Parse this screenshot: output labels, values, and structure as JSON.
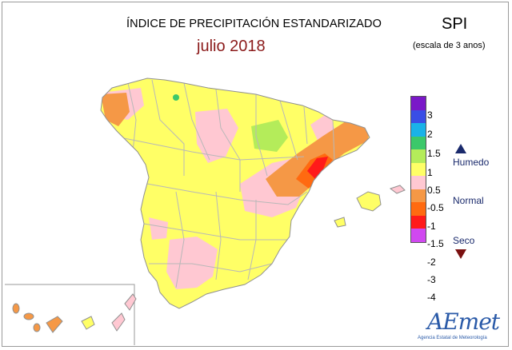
{
  "header": {
    "title": "ÍNDICE DE PRECIPITACIÓN ESTANDARIZADO",
    "subtitle": "julio 2018",
    "index_name": "SPI",
    "scale_note": "(escala de 3 anos)"
  },
  "legend": {
    "colors": [
      "#7a18c8",
      "#3a4ee6",
      "#1ab2e8",
      "#3cc86a",
      "#b4ec5a",
      "#ffff66",
      "#ffc8d2",
      "#f59846",
      "#ff6a10",
      "#ff1a1a",
      "#d048f0"
    ],
    "ticks": [
      "3",
      "2",
      "1.5",
      "1",
      "0.5",
      "-0.5",
      "-1",
      "-1.5",
      "-2",
      "-3",
      "-4"
    ],
    "categories": {
      "wet": "Humedo",
      "normal": "Normal",
      "dry": "Seco"
    },
    "symbols": {
      "wet": "triangle-up-icon",
      "dry": "triangle-down-icon"
    }
  },
  "map_colors": {
    "normal": "#ffff66",
    "slightly_dry": "#ffc8d2",
    "dry": "#f59846",
    "very_dry": "#ff6a10",
    "extremely_dry": "#ff1a1a",
    "slightly_wet": "#b4ec5a",
    "wet": "#3cc86a",
    "borders": "#b0b0b0",
    "coast": "#909090"
  },
  "logo": {
    "name": "AEmet",
    "tagline": "Agencia Estatal de Meteorología"
  }
}
